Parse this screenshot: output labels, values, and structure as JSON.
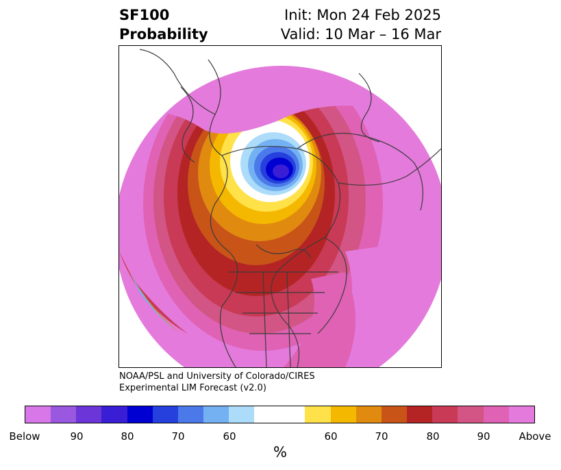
{
  "title": {
    "left_line1": "SF100",
    "left_line2": "Probability",
    "right_line1": "Init: Mon 24 Feb 2025",
    "right_line2": "Valid: 10 Mar – 16 Mar"
  },
  "credit": {
    "line1": "NOAA/PSL and University of Colorado/CIRES",
    "line2": "Experimental LIM Forecast (v2.0)"
  },
  "colorbar": {
    "unit": "%",
    "tick_labels": [
      "Below",
      "90",
      "80",
      "70",
      "60",
      "60",
      "70",
      "80",
      "90",
      "Above"
    ],
    "colors": [
      "#d877e8",
      "#9a58e0",
      "#6b35d8",
      "#3a1ed6",
      "#0000d2",
      "#2540dc",
      "#4c79ea",
      "#74b1f2",
      "#acdcfa",
      "#ffffff",
      "#ffe14a",
      "#f5b800",
      "#e08a10",
      "#c85418",
      "#b42424",
      "#c83a55",
      "#d25585",
      "#df62b5",
      "#e47adb"
    ]
  },
  "map": {
    "description_colors": {
      "above_extreme": "#e47adb",
      "below_extreme": "#3a1ed6"
    }
  }
}
